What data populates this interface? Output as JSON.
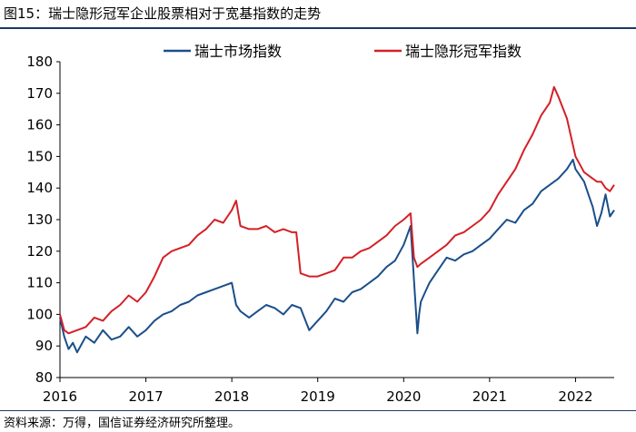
{
  "figure_title": "图15：瑞士隐形冠军企业股票相对于宽基指数的走势",
  "source_note": "资料来源：万得，国信证券经济研究所整理。",
  "colors": {
    "market": "#1a4f8a",
    "champion": "#d42027",
    "axis": "#000000",
    "rule": "#1f3864"
  },
  "chart_data": {
    "type": "line",
    "title": "",
    "xlabel": "",
    "ylabel": "",
    "ylim": [
      80,
      180
    ],
    "yticks": [
      "80",
      "90",
      "100",
      "110",
      "120",
      "130",
      "140",
      "150",
      "160",
      "170",
      "180"
    ],
    "xticks": [
      "2016",
      "2017",
      "2018",
      "2019",
      "2020",
      "2021",
      "2022"
    ],
    "xlim": [
      2016.0,
      2022.45
    ],
    "grid": false,
    "legend_position": "top-center",
    "series": [
      {
        "name": "瑞士市场指数",
        "color": "#1a4f8a",
        "x": [
          2016.0,
          2016.05,
          2016.1,
          2016.15,
          2016.2,
          2016.3,
          2016.4,
          2016.5,
          2016.6,
          2016.7,
          2016.8,
          2016.9,
          2017.0,
          2017.1,
          2017.2,
          2017.3,
          2017.4,
          2017.5,
          2017.6,
          2017.7,
          2017.8,
          2017.9,
          2018.0,
          2018.05,
          2018.1,
          2018.2,
          2018.3,
          2018.4,
          2018.5,
          2018.6,
          2018.7,
          2018.8,
          2018.9,
          2019.0,
          2019.1,
          2019.2,
          2019.3,
          2019.4,
          2019.5,
          2019.6,
          2019.7,
          2019.8,
          2019.9,
          2020.0,
          2020.08,
          2020.12,
          2020.16,
          2020.18,
          2020.2,
          2020.25,
          2020.3,
          2020.4,
          2020.5,
          2020.6,
          2020.7,
          2020.8,
          2020.9,
          2021.0,
          2021.1,
          2021.2,
          2021.3,
          2021.4,
          2021.5,
          2021.6,
          2021.7,
          2021.8,
          2021.9,
          2021.97,
          2022.0,
          2022.1,
          2022.15,
          2022.2,
          2022.25,
          2022.3,
          2022.35,
          2022.4,
          2022.45
        ],
        "values": [
          99,
          93,
          89,
          91,
          88,
          93,
          91,
          95,
          92,
          93,
          96,
          93,
          95,
          98,
          100,
          101,
          103,
          104,
          106,
          107,
          108,
          109,
          110,
          103,
          101,
          99,
          101,
          103,
          102,
          100,
          103,
          102,
          95,
          98,
          101,
          105,
          104,
          107,
          108,
          110,
          112,
          115,
          117,
          122,
          128,
          111,
          94,
          100,
          104,
          107,
          110,
          114,
          118,
          117,
          119,
          120,
          122,
          124,
          127,
          130,
          129,
          133,
          135,
          139,
          141,
          143,
          146,
          149,
          146,
          142,
          138,
          134,
          128,
          132,
          138,
          131,
          133
        ]
      },
      {
        "name": "瑞士隐形冠军指数",
        "color": "#d42027",
        "x": [
          2016.0,
          2016.05,
          2016.1,
          2016.2,
          2016.3,
          2016.4,
          2016.5,
          2016.6,
          2016.7,
          2016.8,
          2016.9,
          2017.0,
          2017.1,
          2017.2,
          2017.3,
          2017.4,
          2017.5,
          2017.6,
          2017.7,
          2017.8,
          2017.9,
          2018.0,
          2018.05,
          2018.1,
          2018.2,
          2018.3,
          2018.4,
          2018.5,
          2018.6,
          2018.7,
          2018.75,
          2018.8,
          2018.9,
          2019.0,
          2019.1,
          2019.2,
          2019.3,
          2019.4,
          2019.5,
          2019.6,
          2019.7,
          2019.8,
          2019.9,
          2020.0,
          2020.08,
          2020.12,
          2020.16,
          2020.2,
          2020.3,
          2020.4,
          2020.5,
          2020.6,
          2020.7,
          2020.8,
          2020.9,
          2021.0,
          2021.1,
          2021.2,
          2021.3,
          2021.4,
          2021.5,
          2021.6,
          2021.7,
          2021.75,
          2021.8,
          2021.9,
          2022.0,
          2022.1,
          2022.2,
          2022.25,
          2022.3,
          2022.35,
          2022.4,
          2022.45
        ],
        "values": [
          100,
          95,
          94,
          95,
          96,
          99,
          98,
          101,
          103,
          106,
          104,
          107,
          112,
          118,
          120,
          121,
          122,
          125,
          127,
          130,
          129,
          133,
          136,
          128,
          127,
          127,
          128,
          126,
          127,
          126,
          126,
          113,
          112,
          112,
          113,
          114,
          118,
          118,
          120,
          121,
          123,
          125,
          128,
          130,
          132,
          118,
          115,
          116,
          118,
          120,
          122,
          125,
          126,
          128,
          130,
          133,
          138,
          142,
          146,
          152,
          157,
          163,
          167,
          172,
          169,
          162,
          150,
          145,
          143,
          142,
          142,
          140,
          139,
          141
        ]
      }
    ]
  }
}
